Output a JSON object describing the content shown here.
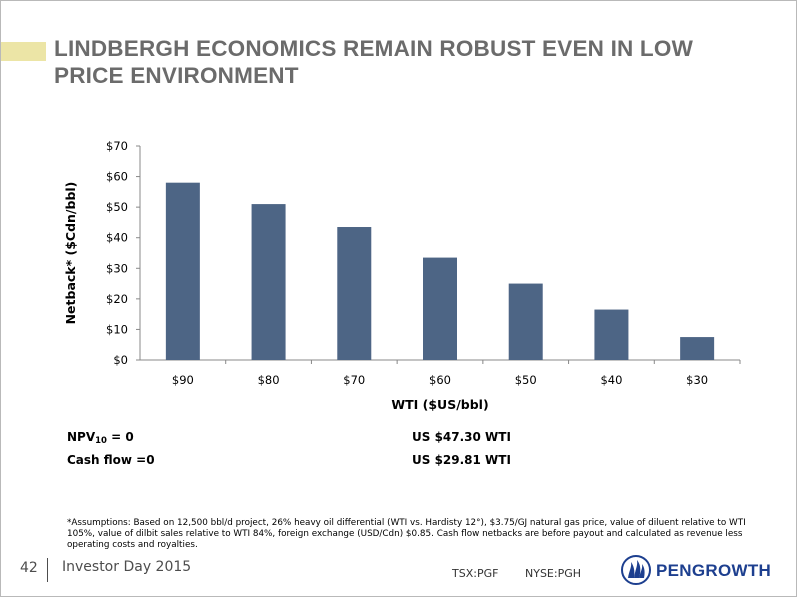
{
  "slide": {
    "title_line1": "LINDBERGH ECONOMICS REMAIN ROBUST EVEN IN LOW",
    "title_line2": "PRICE ENVIRONMENT",
    "accent_color": "#ece5a6",
    "title_color": "#6b6b6b"
  },
  "chart_data": {
    "type": "bar",
    "categories": [
      "$90",
      "$80",
      "$70",
      "$60",
      "$50",
      "$40",
      "$30"
    ],
    "values": [
      58,
      51,
      43.5,
      33.5,
      25,
      16.5,
      7.5
    ],
    "ylim": [
      0,
      70
    ],
    "yticks": [
      0,
      10,
      20,
      30,
      40,
      50,
      60,
      70
    ],
    "ytick_labels": [
      "$0",
      "$10",
      "$20",
      "$30",
      "$40",
      "$50",
      "$60",
      "$70"
    ],
    "xlabel": "WTI ($US/bbl)",
    "ylabel": "Netback* ($Cdn/bbl)",
    "bar_color": "#4d6585",
    "grid": false,
    "legend": false
  },
  "stats": {
    "npv_label": "NPV",
    "npv_sub": "10",
    "npv_suffix": " = 0",
    "npv_value": "US  $47.30 WTI",
    "cashflow_label": "Cash flow =0",
    "cashflow_value": "US  $29.81 WTI"
  },
  "footnote": "*Assumptions:  Based on 12,500 bbl/d project,  26% heavy oil differential (WTI vs. Hardisty 12°), $3.75/GJ natural gas price, value of diluent relative to WTI 105%, value of dilbit sales relative to WTI 84%, foreign exchange (USD/Cdn) $0.85. Cash flow netbacks are before payout and calculated as revenue less operating costs and royalties.",
  "footer": {
    "page_number": "42",
    "event": "Investor Day 2015",
    "ticker_tsx": "TSX:PGF",
    "ticker_nyse": "NYSE:PGH",
    "logo_text": "PENGROWTH",
    "logo_icon": "pengrowth-flame-icon",
    "logo_color": "#1d3f8f"
  }
}
